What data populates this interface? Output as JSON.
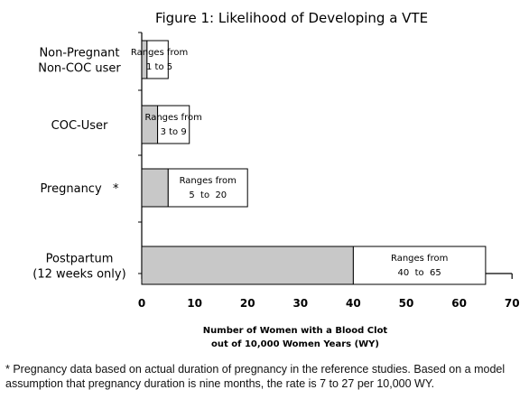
{
  "chart_data": {
    "type": "bar",
    "title": "Figure 1: Likelihood of Developing a VTE",
    "orientation": "horizontal",
    "stacked": true,
    "categories": [
      [
        "Non-Pregnant",
        "Non-COC user"
      ],
      [
        "COC-User"
      ],
      [
        "Pregnancy   *"
      ],
      [
        "Postpartum",
        "(12 weeks only)"
      ]
    ],
    "range_low": [
      1,
      3,
      5,
      40
    ],
    "range_high": [
      5,
      9,
      20,
      65
    ],
    "annotations": [
      [
        "Ranges from",
        "1 to 5"
      ],
      [
        "Ranges from",
        "3 to 9"
      ],
      [
        "Ranges from",
        "5  to  20"
      ],
      [
        "Ranges from",
        "40  to  65"
      ]
    ],
    "xlabel": [
      "Number of Women with a Blood Clot",
      "out of 10,000 Women Years (WY)"
    ],
    "xlim": [
      0,
      70
    ],
    "xticks": [
      0,
      10,
      20,
      30,
      40,
      50,
      60,
      70
    ],
    "colors": {
      "low_fill": "#c8c8c8",
      "high_fill": "#ffffff",
      "stroke": "#000000"
    }
  },
  "footnote": "* Pregnancy data based on actual duration of pregnancy in the reference studies. Based on a model assumption that pregnancy duration is nine months, the rate is 7 to 27 per 10,000 WY."
}
